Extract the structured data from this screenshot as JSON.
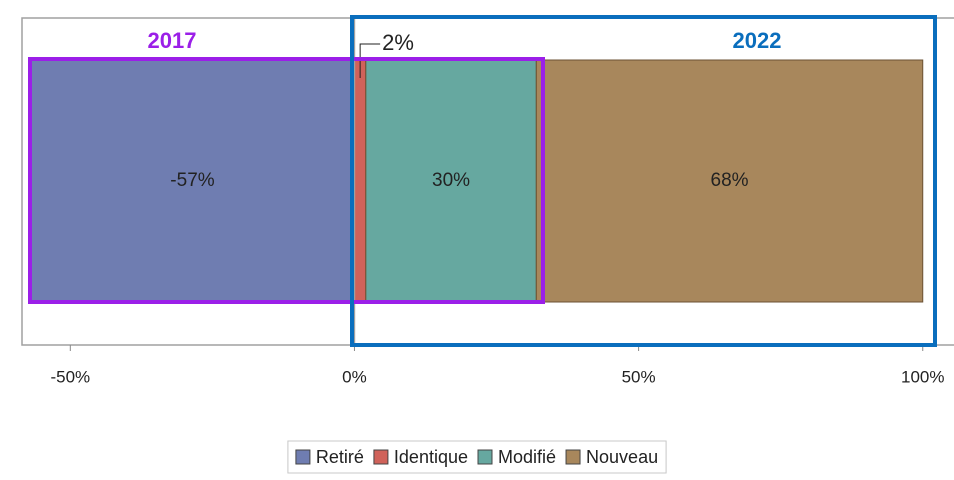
{
  "chart_data": {
    "type": "stacked_bar_horizontal",
    "annotations": [
      "2017",
      "2022"
    ],
    "series": [
      {
        "name": "Retiré",
        "color": "#6f7db1",
        "values": [
          -57
        ],
        "value_labels": [
          "-57%"
        ]
      },
      {
        "name": "Identique",
        "color": "#d0625a",
        "values": [
          2
        ],
        "value_labels": [
          "2%"
        ]
      },
      {
        "name": "Modifié",
        "color": "#66a8a0",
        "values": [
          30
        ],
        "value_labels": [
          "30%"
        ]
      },
      {
        "name": "Nouveau",
        "color": "#a8875c",
        "values": [
          68
        ],
        "value_labels": [
          "68%"
        ]
      }
    ],
    "xlim": [
      -58.5,
      105.5
    ],
    "xticks": [
      {
        "value": -50,
        "label": "-50%"
      },
      {
        "value": 0,
        "label": "0%"
      },
      {
        "value": 50,
        "label": "50%"
      },
      {
        "value": 100,
        "label": "100%"
      }
    ],
    "legend": "bottom"
  }
}
